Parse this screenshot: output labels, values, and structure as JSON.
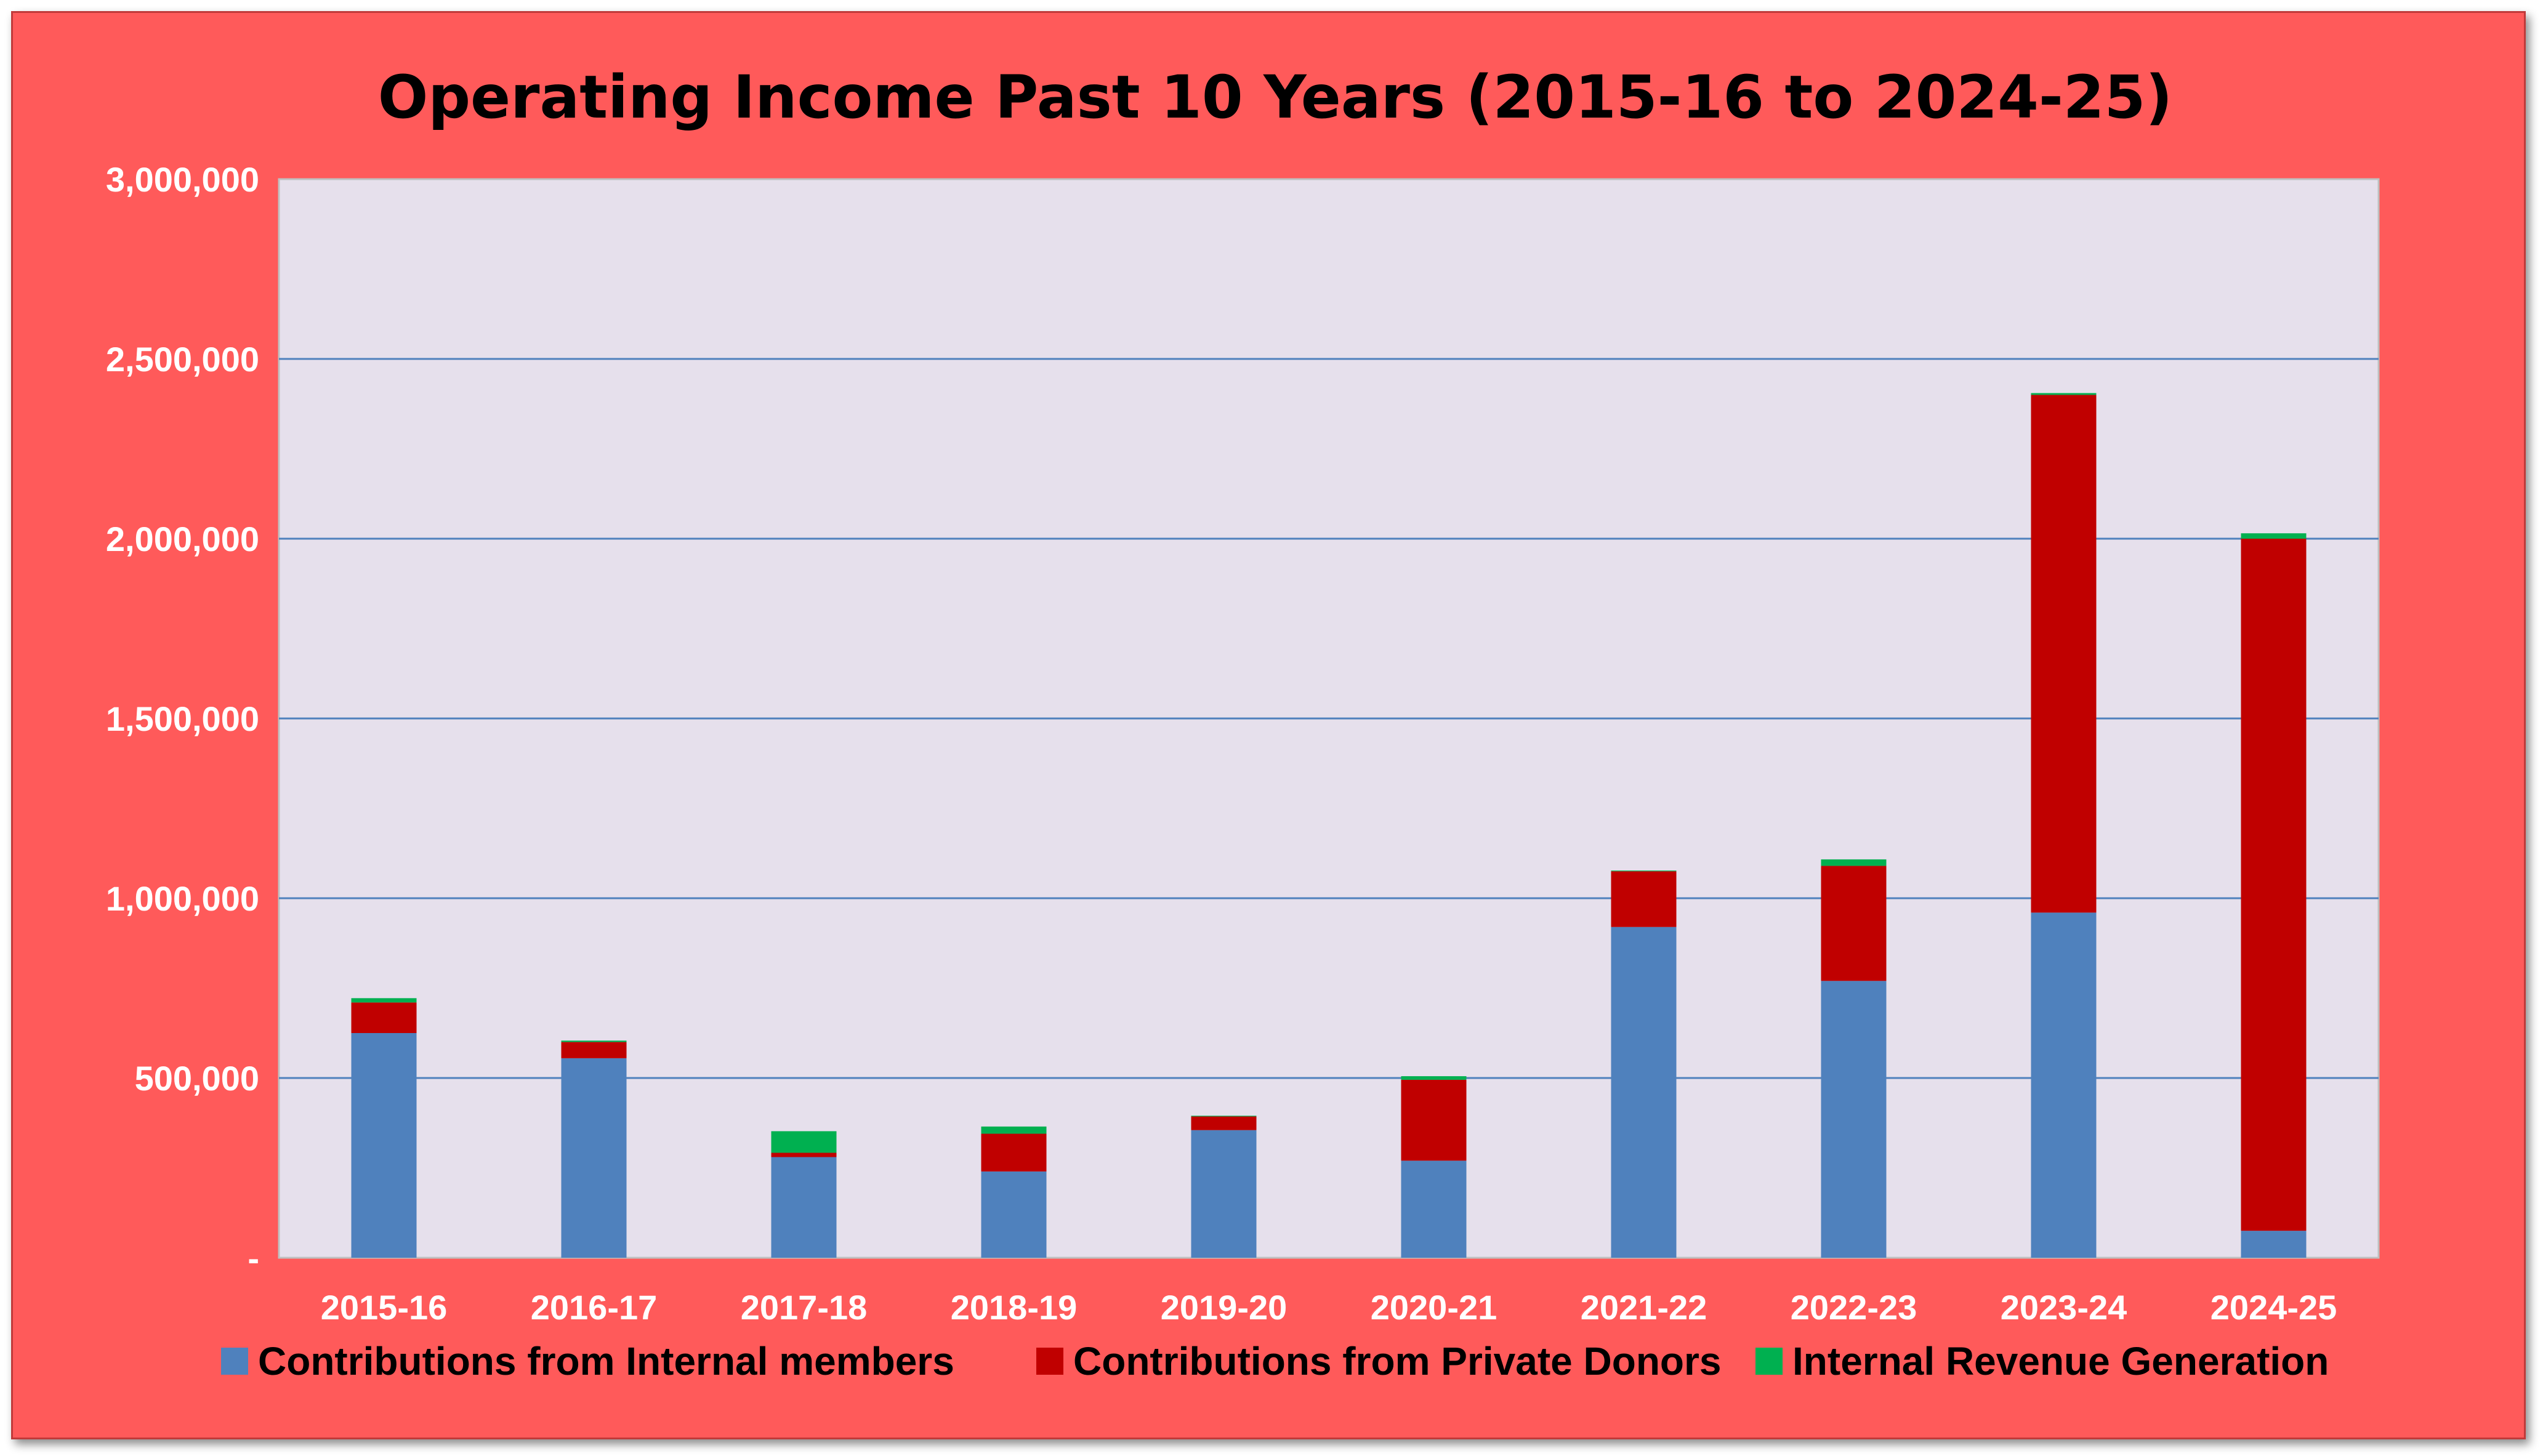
{
  "chart_data": {
    "type": "bar",
    "stacked": true,
    "title": "Operating Income Past 10 Years (2015-16 to 2024-25)",
    "categories": [
      "2015-16",
      "2016-17",
      "2017-18",
      "2018-19",
      "2019-20",
      "2020-21",
      "2021-22",
      "2022-23",
      "2023-24",
      "2024-25"
    ],
    "series": [
      {
        "name": "Contributions from Internal members",
        "color": "#4f81bd",
        "values": [
          625000,
          555000,
          280000,
          240000,
          355000,
          270000,
          920000,
          770000,
          960000,
          75000
        ]
      },
      {
        "name": "Contributions from Private Donors",
        "color": "#c00000",
        "values": [
          85000,
          45000,
          12000,
          105000,
          38000,
          225000,
          155000,
          320000,
          1440000,
          1925000
        ]
      },
      {
        "name": "Internal Revenue Generation",
        "color": "#00b050",
        "values": [
          12000,
          4000,
          60000,
          20000,
          2000,
          10000,
          2000,
          18000,
          5000,
          15000
        ]
      }
    ],
    "ylim": [
      0,
      3000000
    ],
    "yticks": [
      0,
      500000,
      1000000,
      1500000,
      2000000,
      2500000,
      3000000
    ],
    "ytick_labels": [
      "-",
      "500,000",
      "1,000,000",
      "1,500,000",
      "2,000,000",
      "2,500,000",
      "3,000,000"
    ],
    "grid": true,
    "legend_position": "bottom",
    "plot_background": "#e6e0ec",
    "frame_background": "#ff5a5a",
    "gridline_color": "#4f81bd"
  }
}
